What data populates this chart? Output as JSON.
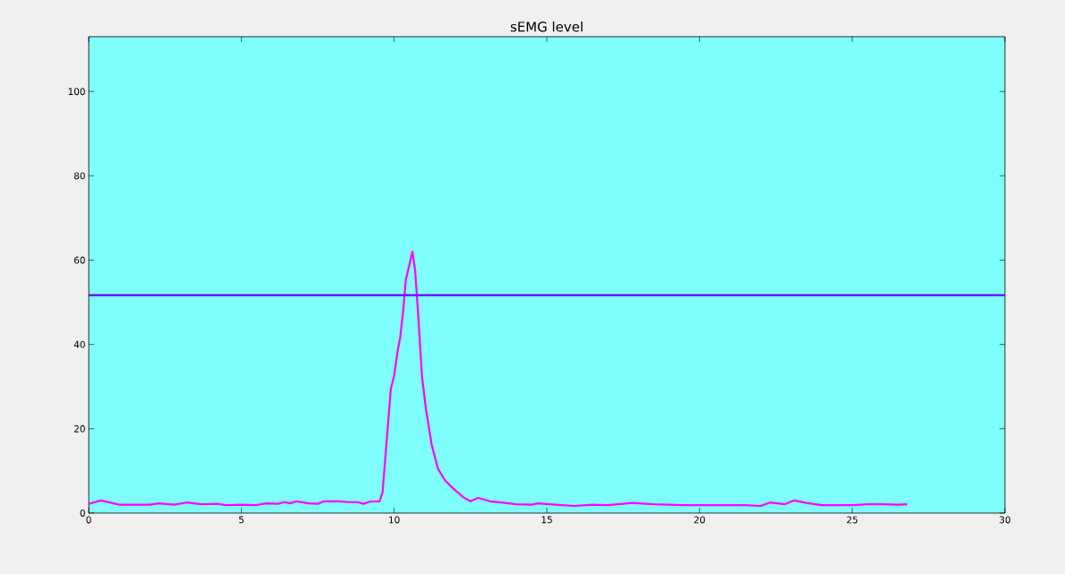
{
  "chart_data": {
    "type": "line",
    "title": "sEMG level",
    "xlim": [
      0,
      30
    ],
    "ylim": [
      0,
      113
    ],
    "xticks": [
      0,
      5,
      10,
      15,
      20,
      25,
      30
    ],
    "yticks": [
      0,
      20,
      40,
      60,
      80,
      100
    ],
    "grid": false,
    "marker": "none",
    "line_style": "solid",
    "series": [
      {
        "color": "#ff00ff",
        "x": [
          0,
          0.4,
          1,
          2,
          2.3,
          2.8,
          3.2,
          3.7,
          4.2,
          4.5,
          5,
          5.5,
          5.8,
          6.2,
          6.4,
          6.6,
          6.8,
          7.2,
          7.5,
          7.7,
          8.2,
          8.5,
          8.8,
          9.0,
          9.2,
          9.52,
          9.62,
          9.77,
          9.89,
          10.0,
          10.11,
          10.2,
          10.3,
          10.38,
          10.6,
          10.69,
          10.79,
          10.91,
          11.04,
          11.23,
          11.43,
          11.67,
          11.97,
          12.26,
          12.5,
          12.75,
          13.14,
          13.5,
          14.0,
          14.5,
          14.7,
          15.3,
          15.9,
          16.5,
          17.0,
          17.8,
          18.5,
          19.5,
          20.5,
          21.5,
          22.0,
          22.3,
          22.8,
          23.1,
          23.5,
          24.0,
          25.0,
          25.5,
          26.0,
          26.5,
          26.8
        ],
        "values": [
          2.2,
          3.0,
          2.0,
          2.0,
          2.3,
          2.0,
          2.5,
          2.1,
          2.2,
          1.9,
          2.0,
          1.9,
          2.3,
          2.2,
          2.6,
          2.3,
          2.8,
          2.3,
          2.2,
          2.8,
          2.8,
          2.6,
          2.6,
          2.2,
          2.7,
          2.8,
          4.9,
          18.4,
          29.4,
          32.6,
          38.2,
          41.8,
          48.2,
          55.2,
          62.0,
          57.4,
          46.7,
          32.6,
          24.7,
          16.2,
          10.6,
          7.7,
          5.6,
          3.8,
          2.8,
          3.6,
          2.8,
          2.5,
          2.1,
          2.0,
          2.3,
          2.0,
          1.7,
          2.0,
          1.9,
          2.4,
          2.1,
          1.9,
          1.9,
          1.9,
          1.7,
          2.5,
          2.1,
          3.0,
          2.4,
          1.9,
          1.9,
          2.1,
          2.1,
          2.0,
          2.1
        ]
      }
    ],
    "ref_lines": [
      {
        "axis": "y",
        "value": 51.7,
        "color": "#6a00ff",
        "line_style": "solid"
      }
    ]
  }
}
